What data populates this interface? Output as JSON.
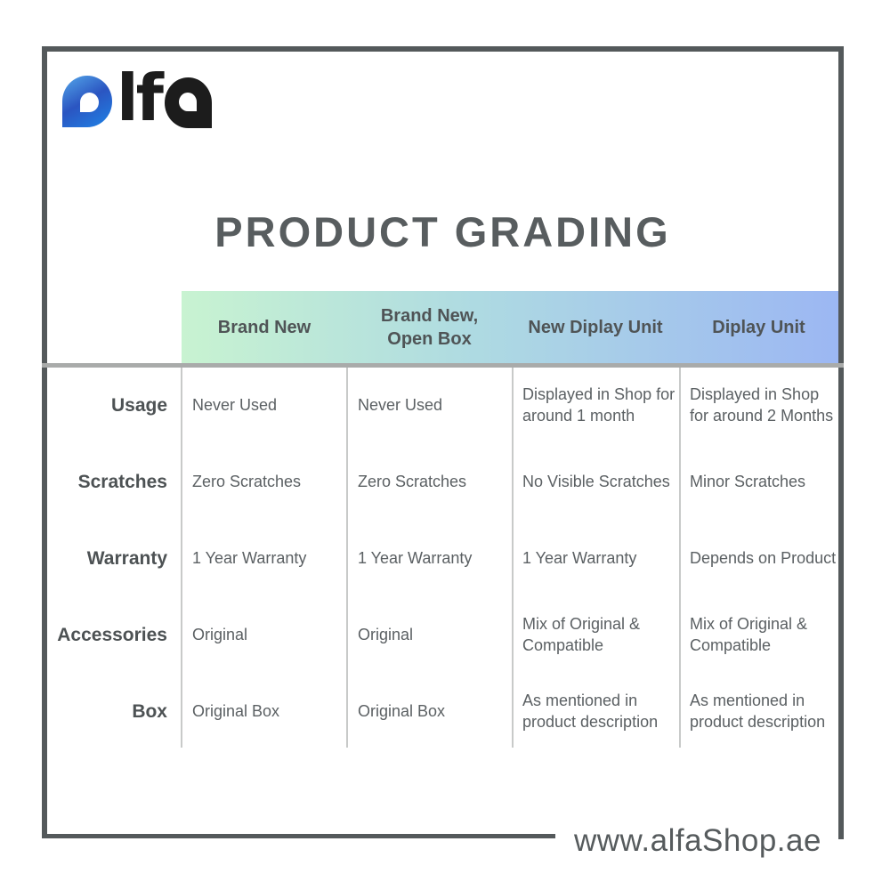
{
  "brand": {
    "name": "alfa",
    "logo_text": "lf"
  },
  "title": "PRODUCT GRADING",
  "table": {
    "column_headers": [
      "Brand New",
      "Brand New,\nOpen Box",
      "New Diplay Unit",
      "Diplay Unit"
    ],
    "rows": [
      {
        "label": "Usage",
        "cells": [
          "Never Used",
          "Never Used",
          "Displayed in Shop for around 1 month",
          "Displayed in Shop for around 2 Months"
        ]
      },
      {
        "label": "Scratches",
        "cells": [
          "Zero Scratches",
          "Zero Scratches",
          "No Visible Scratches",
          "Minor Scratches"
        ]
      },
      {
        "label": "Warranty",
        "cells": [
          "1 Year Warranty",
          "1 Year Warranty",
          "1 Year Warranty",
          "Depends on Product"
        ]
      },
      {
        "label": "Accessories",
        "cells": [
          "Original",
          "Original",
          "Mix of Original & Compatible",
          "Mix of Original & Compatible"
        ]
      },
      {
        "label": "Box",
        "cells": [
          "Original Box",
          "Original Box",
          "As mentioned in product description",
          "As mentioned in product description"
        ]
      }
    ]
  },
  "footer": {
    "website": "www.alfaShop.ae"
  },
  "colors": {
    "frame": "#54595b",
    "title_text": "#585d5f",
    "header_text": "#4f5456",
    "row_label_text": "#4d5254",
    "cell_text": "#5b6063",
    "header_gradient_start": "#c8f3d1",
    "header_gradient_mid": "#aedae2",
    "header_gradient_end": "#9cb7f3",
    "header_underline": "#a9abaa",
    "column_divider": "#c8cac9",
    "logo_blue_light": "#54a8ea",
    "logo_blue_dark": "#2b55c1",
    "logo_black": "#1c1c1c"
  }
}
